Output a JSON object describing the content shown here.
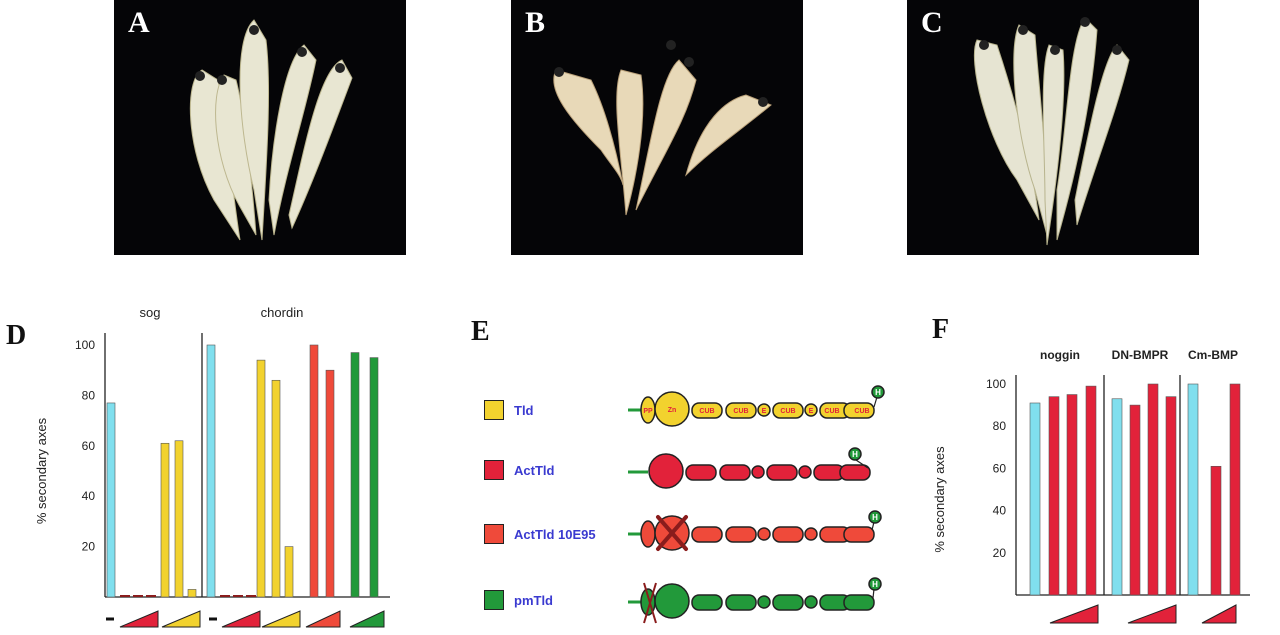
{
  "photos": [
    {
      "label": "A"
    },
    {
      "label": "B"
    },
    {
      "label": "C"
    }
  ],
  "panel_d": {
    "label": "D",
    "chart_data": {
      "type": "bar",
      "title": "",
      "ylabel": "% secondary axes",
      "ylim": [
        0,
        100
      ],
      "yticks": [
        20,
        40,
        60,
        80,
        100
      ],
      "group_labels": [
        "sog",
        "chordin"
      ],
      "x_symbols": [
        "-",
        "ramp-red",
        "ramp-yellow",
        "-",
        "ramp-red",
        "ramp-yellow",
        "ramp-red",
        "ramp-green"
      ],
      "bars": [
        {
          "group": "sog",
          "color": "#80dfee",
          "value": 77
        },
        {
          "group": "sog",
          "color": "#8a1c1c",
          "value": 0.5
        },
        {
          "group": "sog",
          "color": "#8a1c1c",
          "value": 0.5
        },
        {
          "group": "sog",
          "color": "#8a1c1c",
          "value": 0.5
        },
        {
          "group": "sog",
          "color": "#f2d22e",
          "value": 61
        },
        {
          "group": "sog",
          "color": "#f2d22e",
          "value": 62
        },
        {
          "group": "sog",
          "color": "#f2d22e",
          "value": 3
        },
        {
          "group": "chordin",
          "color": "#80dfee",
          "value": 100
        },
        {
          "group": "chordin",
          "color": "#8a1c1c",
          "value": 0.5
        },
        {
          "group": "chordin",
          "color": "#8a1c1c",
          "value": 0.5
        },
        {
          "group": "chordin",
          "color": "#8a1c1c",
          "value": 0.5
        },
        {
          "group": "chordin",
          "color": "#f2d22e",
          "value": 94
        },
        {
          "group": "chordin",
          "color": "#f2d22e",
          "value": 86
        },
        {
          "group": "chordin",
          "color": "#f2d22e",
          "value": 20
        },
        {
          "group": "chordin",
          "color": "#ef4a3a",
          "value": 100
        },
        {
          "group": "chordin",
          "color": "#ef4a3a",
          "value": 90
        },
        {
          "group": "chordin",
          "color": "#22993a",
          "value": 97
        },
        {
          "group": "chordin",
          "color": "#22993a",
          "value": 95
        }
      ]
    }
  },
  "panel_e": {
    "label": "E",
    "legend": [
      {
        "name": "Tld",
        "color": "#f2d22e"
      },
      {
        "name": "ActTld",
        "color": "#e2223a"
      },
      {
        "name": "ActTld 10E95",
        "color": "#ef4a3a"
      },
      {
        "name": "pmTld",
        "color": "#22993a"
      }
    ],
    "domain_labels": {
      "pp": "PP",
      "zn": "Zn",
      "cub": "CUB",
      "egf": "E",
      "his_tag": "H"
    }
  },
  "panel_f": {
    "label": "F",
    "chart_data": {
      "type": "bar",
      "title": "",
      "ylabel": "% secondary axes",
      "ylim": [
        0,
        100
      ],
      "yticks": [
        20,
        40,
        60,
        80,
        100
      ],
      "group_labels": [
        "noggin",
        "DN-BMPR",
        "Cm-BMP"
      ],
      "bars": [
        {
          "group": "noggin",
          "color": "#80dfee",
          "value": 91
        },
        {
          "group": "noggin",
          "color": "#e2223a",
          "value": 94
        },
        {
          "group": "noggin",
          "color": "#e2223a",
          "value": 95
        },
        {
          "group": "noggin",
          "color": "#e2223a",
          "value": 99
        },
        {
          "group": "DN-BMPR",
          "color": "#80dfee",
          "value": 93
        },
        {
          "group": "DN-BMPR",
          "color": "#e2223a",
          "value": 90
        },
        {
          "group": "DN-BMPR",
          "color": "#e2223a",
          "value": 100
        },
        {
          "group": "DN-BMPR",
          "color": "#e2223a",
          "value": 94
        },
        {
          "group": "Cm-BMP",
          "color": "#80dfee",
          "value": 100
        },
        {
          "group": "Cm-BMP",
          "color": "#e2223a",
          "value": 61
        },
        {
          "group": "Cm-BMP",
          "color": "#e2223a",
          "value": 100
        }
      ]
    }
  }
}
